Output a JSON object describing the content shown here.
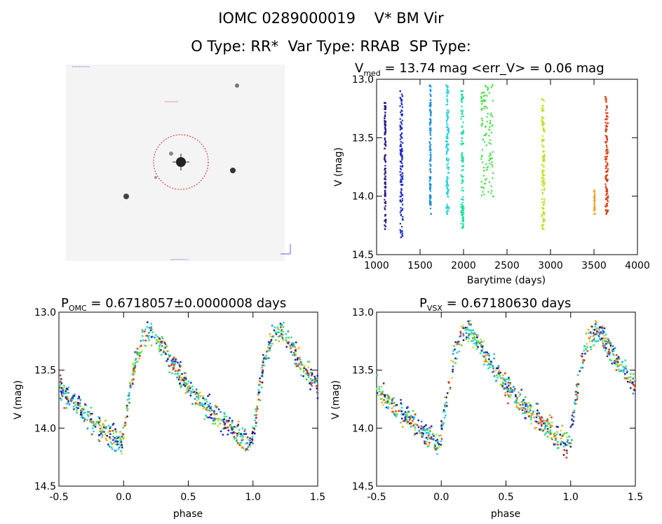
{
  "header": {
    "line1": "IOMC 0289000019    V* BM Vir",
    "line2": "O Type: RR*  Var Type: RRAB  SP Type:"
  },
  "image_panel": {
    "label": "finder-image"
  },
  "colors": {
    "ring": "#dd2222",
    "series": [
      "#2a1a8a",
      "#1a2ad0",
      "#1a90e0",
      "#22d0e0",
      "#22e0a0",
      "#44e044",
      "#c0e022",
      "#f0a020",
      "#e03a10"
    ]
  },
  "chart_data": [
    {
      "type": "scatter",
      "title_parts": [
        "V",
        "med",
        " = 13.74 mag <err_V> = 0.06 mag"
      ],
      "xlabel": "Barytime (days)",
      "ylabel": "V (mag)",
      "xlim": [
        1000,
        4000
      ],
      "ylim": [
        14.5,
        13.0
      ],
      "xticks": [
        "1000",
        "1500",
        "2000",
        "2500",
        "3000",
        "3500",
        "4000"
      ],
      "yticks": [
        "13.0",
        "13.5",
        "14.0",
        "14.5"
      ],
      "series": [
        {
          "values": [
            [
              1090,
              13.2
            ],
            [
              1095,
              14.28
            ],
            [
              1100,
              13.8
            ],
            [
              1105,
              14.2
            ]
          ]
        },
        {
          "values": [
            [
              1270,
              13.1
            ],
            [
              1280,
              14.35
            ],
            [
              1290,
              13.5
            ],
            [
              1300,
              14.2
            ]
          ]
        },
        {
          "values": [
            [
              1610,
              13.05
            ],
            [
              1620,
              13.35
            ],
            [
              1620,
              13.9
            ],
            [
              1625,
              14.15
            ]
          ]
        },
        {
          "values": [
            [
              1800,
              13.05
            ],
            [
              1810,
              14.15
            ],
            [
              1820,
              13.6
            ],
            [
              1830,
              14.1
            ]
          ]
        },
        {
          "values": [
            [
              1970,
              13.1
            ],
            [
              1980,
              14.27
            ],
            [
              1990,
              13.7
            ],
            [
              2000,
              14.1
            ]
          ]
        },
        {
          "values": [
            [
              2200,
              13.15
            ],
            [
              2210,
              13.25
            ],
            [
              2330,
              13.05
            ],
            [
              2340,
              14.0
            ]
          ]
        },
        {
          "values": [
            [
              2900,
              13.17
            ],
            [
              2910,
              14.28
            ],
            [
              2920,
              13.7
            ],
            [
              2930,
              14.2
            ]
          ]
        },
        {
          "values": [
            [
              3500,
              13.95
            ],
            [
              3510,
              14.15
            ]
          ]
        },
        {
          "values": [
            [
              3630,
              13.15
            ],
            [
              3640,
              14.15
            ],
            [
              3650,
              13.6
            ],
            [
              3660,
              14.0
            ]
          ]
        }
      ]
    },
    {
      "type": "scatter",
      "title_parts": [
        "P",
        "OMC",
        " = 0.6718057±0.0000008 days"
      ],
      "xlabel": "phase",
      "ylabel": "V (mag)",
      "xlim": [
        -0.5,
        1.5
      ],
      "ylim": [
        14.5,
        13.0
      ],
      "xticks": [
        "-0.5",
        "0.0",
        "0.5",
        "1.0",
        "1.5"
      ],
      "yticks": [
        "13.0",
        "13.5",
        "14.0",
        "14.5"
      ],
      "light_curve": [
        [
          0.0,
          14.05
        ],
        [
          0.08,
          13.45
        ],
        [
          0.15,
          13.2
        ],
        [
          0.22,
          13.15
        ],
        [
          0.35,
          13.4
        ],
        [
          0.55,
          13.72
        ],
        [
          0.8,
          13.98
        ],
        [
          0.92,
          14.08
        ],
        [
          0.97,
          14.15
        ],
        [
          1.0,
          14.05
        ]
      ]
    },
    {
      "type": "scatter",
      "title_parts": [
        "P",
        "VSX",
        " = 0.67180630 days"
      ],
      "xlabel": "phase",
      "ylabel": "V (mag)",
      "xlim": [
        -0.5,
        1.5
      ],
      "ylim": [
        14.5,
        13.0
      ],
      "xticks": [
        "-0.5",
        "0.0",
        "0.5",
        "1.0",
        "1.5"
      ],
      "yticks": [
        "13.0",
        "13.5",
        "14.0",
        "14.5"
      ],
      "light_curve": [
        [
          0.0,
          14.05
        ],
        [
          0.08,
          13.45
        ],
        [
          0.15,
          13.2
        ],
        [
          0.22,
          13.15
        ],
        [
          0.35,
          13.4
        ],
        [
          0.55,
          13.72
        ],
        [
          0.8,
          13.98
        ],
        [
          0.92,
          14.08
        ],
        [
          0.97,
          14.15
        ],
        [
          1.0,
          14.05
        ]
      ]
    }
  ]
}
